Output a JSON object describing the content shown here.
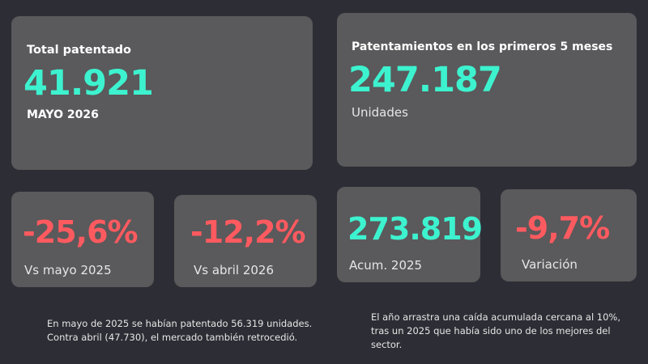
{
  "total": {
    "title": "Total patentado",
    "value": "41.921",
    "period": "MAYO 2026"
  },
  "first_months": {
    "title": "Patentamientos en los primeros 5 meses",
    "value": "247.187",
    "unit": "Unidades"
  },
  "stats": [
    {
      "value": "-25,6%",
      "label": "Vs mayo 2025"
    },
    {
      "value": "-12,2%",
      "label": "Vs abril 2026"
    },
    {
      "value": "273.819",
      "label": "Acum. 2025"
    },
    {
      "value": "-9,7%",
      "label": "Variación"
    }
  ],
  "notes": {
    "left": [
      "En mayo de 2025 se habían patentado 56.319 unidades.",
      "Contra abril (47.730), el mercado también retrocedió."
    ],
    "right": [
      "El año arrastra una caída acumulada cercana al 10%,",
      "tras un 2025 que había sido uno de los mejores del",
      "sector."
    ]
  },
  "colors": {
    "background": "#2d2d35",
    "card": "#5a595b",
    "accent_positive": "#3df2cf",
    "accent_negative": "#ff5a5f"
  }
}
